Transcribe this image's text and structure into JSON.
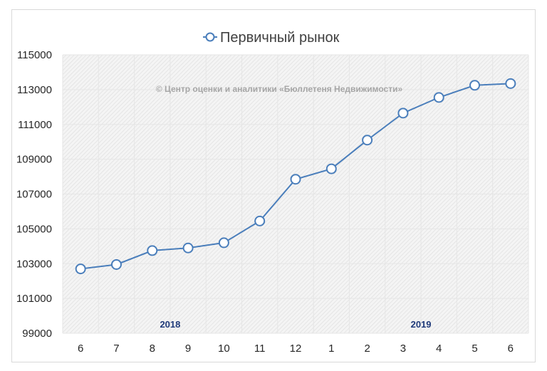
{
  "chart_data": {
    "type": "line",
    "title": "",
    "legend": {
      "entries": [
        "Первичный рынок"
      ],
      "position": "top"
    },
    "watermark": "© Центр оценки и аналитики «Бюллетеня Недвижимости»",
    "xlabel": "",
    "ylabel": "",
    "categories": [
      "6",
      "7",
      "8",
      "9",
      "10",
      "11",
      "12",
      "1",
      "2",
      "3",
      "4",
      "5",
      "6"
    ],
    "year_labels": [
      {
        "label": "2018",
        "between_index": 3
      },
      {
        "label": "2019",
        "between_index": 10
      }
    ],
    "series": [
      {
        "name": "Первичный рынок",
        "color": "#4a7ebb",
        "marker": "circle-hollow",
        "values": [
          102700,
          102950,
          103750,
          103900,
          104200,
          105450,
          107850,
          108450,
          110100,
          111650,
          112550,
          113250,
          113350
        ]
      }
    ],
    "yticks": [
      99000,
      101000,
      103000,
      105000,
      107000,
      109000,
      111000,
      113000,
      115000
    ],
    "ylim": [
      99000,
      115000
    ],
    "grid": true,
    "plot_background": "hatched-light-gray"
  },
  "labels": {
    "legend": "Первичный рынок",
    "watermark": "© Центр оценки и аналитики «Бюллетеня Недвижимости»"
  },
  "colors": {
    "line": "#4a7ebb",
    "marker_fill": "#ffffff",
    "year_label": "#1f3a7a",
    "watermark": "#a6a6a6"
  }
}
